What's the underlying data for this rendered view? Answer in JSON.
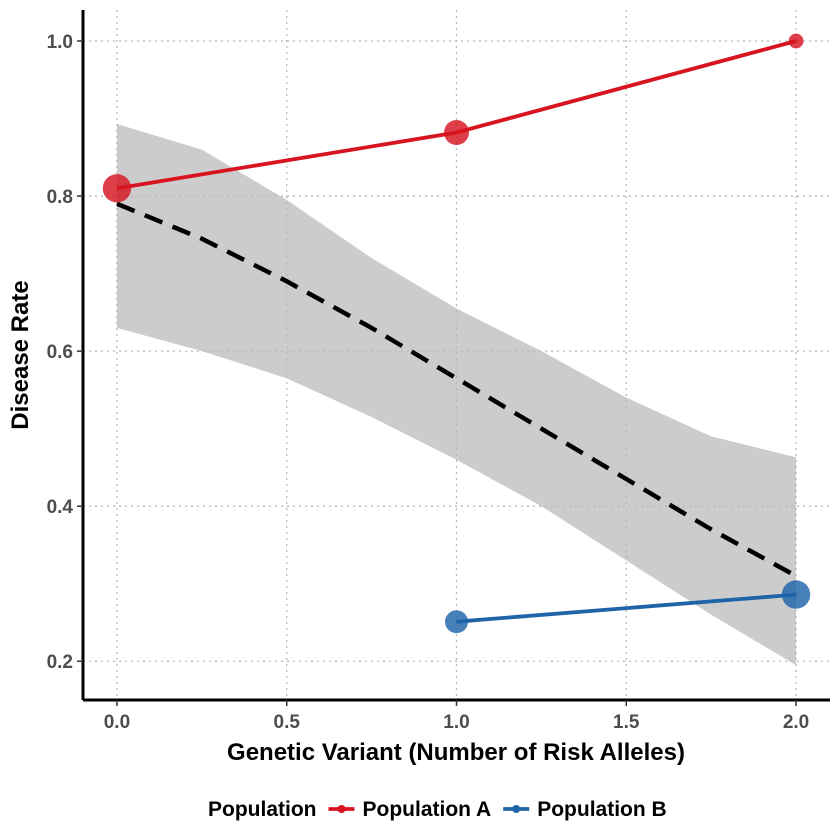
{
  "chart_data": {
    "type": "line",
    "xlabel": "Genetic Variant (Number of Risk Alleles)",
    "ylabel": "Disease Rate",
    "xlim": [
      -0.1,
      2.1
    ],
    "ylim": [
      0.15,
      1.04
    ],
    "x_ticks": [
      0.0,
      0.5,
      1.0,
      1.5,
      2.0
    ],
    "x_tick_labels": [
      "0.0",
      "0.5",
      "1.0",
      "1.5",
      "2.0"
    ],
    "y_ticks": [
      0.2,
      0.4,
      0.6,
      0.8,
      1.0
    ],
    "y_tick_labels": [
      "0.2",
      "0.4",
      "0.6",
      "0.8",
      "1.0"
    ],
    "grid": true,
    "legend": {
      "position": "bottom",
      "title": "Population"
    },
    "series": [
      {
        "name": "Population A",
        "color": "#d7141f",
        "x": [
          0,
          1,
          2
        ],
        "y": [
          0.81,
          0.882,
          1.0
        ],
        "point_size": [
          3,
          2.5,
          1
        ]
      },
      {
        "name": "Population B",
        "color": "#1f63a8",
        "x": [
          1,
          2
        ],
        "y": [
          0.251,
          0.286
        ],
        "point_size": [
          2.2,
          3
        ]
      }
    ],
    "trend": {
      "style": "dashed",
      "color": "#000000",
      "band_color": "#cccccc",
      "x": [
        0,
        0.25,
        0.5,
        0.75,
        1.0,
        1.25,
        1.5,
        1.75,
        2.0
      ],
      "y": [
        0.79,
        0.745,
        0.69,
        0.63,
        0.565,
        0.5,
        0.435,
        0.37,
        0.31
      ],
      "lower": [
        0.63,
        0.6,
        0.565,
        0.515,
        0.46,
        0.4,
        0.33,
        0.26,
        0.195
      ],
      "upper": [
        0.893,
        0.86,
        0.795,
        0.72,
        0.655,
        0.6,
        0.54,
        0.49,
        0.463
      ]
    }
  }
}
